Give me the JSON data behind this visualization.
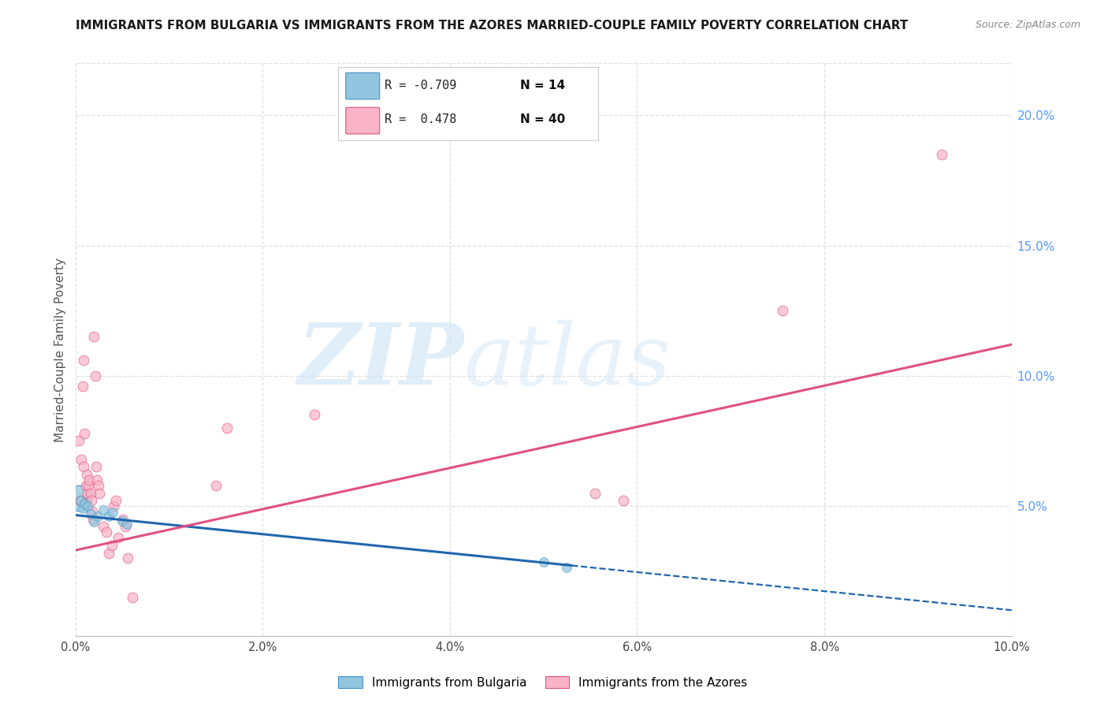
{
  "title": "IMMIGRANTS FROM BULGARIA VS IMMIGRANTS FROM THE AZORES MARRIED-COUPLE FAMILY POVERTY CORRELATION CHART",
  "source": "Source: ZipAtlas.com",
  "ylabel": "Married-Couple Family Poverty",
  "watermark_zip": "ZIP",
  "watermark_atlas": "atlas",
  "legend_blue_R": "R = -0.709",
  "legend_blue_N": "N = 14",
  "legend_pink_R": "R =  0.478",
  "legend_pink_N": "N = 40",
  "legend_label_blue": "Immigrants from Bulgaria",
  "legend_label_pink": "Immigrants from the Azores",
  "xlim": [
    0.0,
    10.0
  ],
  "ylim": [
    0.0,
    22.0
  ],
  "x_ticks": [
    0.0,
    2.0,
    4.0,
    6.0,
    8.0,
    10.0
  ],
  "y_ticks_right": [
    5.0,
    10.0,
    15.0,
    20.0
  ],
  "blue_scatter": [
    [
      0.05,
      5.2
    ],
    [
      0.08,
      4.9
    ],
    [
      0.1,
      5.1
    ],
    [
      0.13,
      5.0
    ],
    [
      0.16,
      4.7
    ],
    [
      0.2,
      4.4
    ],
    [
      0.24,
      4.6
    ],
    [
      0.3,
      4.85
    ],
    [
      0.36,
      4.6
    ],
    [
      0.4,
      4.75
    ],
    [
      0.5,
      4.42
    ],
    [
      0.55,
      4.3
    ],
    [
      5.0,
      2.85
    ],
    [
      5.25,
      2.65
    ]
  ],
  "blue_large_x": 0.04,
  "blue_large_y": 5.3,
  "blue_large_size": 550,
  "pink_scatter": [
    [
      0.04,
      7.5
    ],
    [
      0.05,
      5.2
    ],
    [
      0.065,
      6.8
    ],
    [
      0.075,
      9.6
    ],
    [
      0.085,
      6.5
    ],
    [
      0.09,
      10.6
    ],
    [
      0.1,
      7.8
    ],
    [
      0.11,
      5.8
    ],
    [
      0.12,
      6.2
    ],
    [
      0.13,
      5.5
    ],
    [
      0.14,
      5.8
    ],
    [
      0.15,
      6.0
    ],
    [
      0.16,
      5.5
    ],
    [
      0.17,
      5.2
    ],
    [
      0.18,
      4.8
    ],
    [
      0.19,
      4.5
    ],
    [
      0.2,
      11.5
    ],
    [
      0.21,
      10.0
    ],
    [
      0.22,
      6.5
    ],
    [
      0.23,
      6.0
    ],
    [
      0.245,
      5.8
    ],
    [
      0.26,
      5.5
    ],
    [
      0.3,
      4.2
    ],
    [
      0.33,
      4.0
    ],
    [
      0.36,
      3.2
    ],
    [
      0.39,
      3.5
    ],
    [
      0.41,
      5.0
    ],
    [
      0.43,
      5.2
    ],
    [
      0.46,
      3.8
    ],
    [
      0.51,
      4.5
    ],
    [
      0.53,
      4.2
    ],
    [
      0.56,
      3.0
    ],
    [
      0.61,
      1.5
    ],
    [
      1.5,
      5.8
    ],
    [
      1.62,
      8.0
    ],
    [
      2.55,
      8.5
    ],
    [
      5.55,
      5.5
    ],
    [
      5.85,
      5.2
    ],
    [
      7.55,
      12.5
    ],
    [
      9.25,
      18.5
    ]
  ],
  "blue_line_x0": 0.0,
  "blue_line_y0": 4.65,
  "blue_line_x1": 10.0,
  "blue_line_y1": 1.0,
  "blue_solid_end_x": 5.3,
  "pink_line_x0": 0.0,
  "pink_line_y0": 3.3,
  "pink_line_x1": 10.0,
  "pink_line_y1": 11.2,
  "blue_color": "#92c5de",
  "blue_edge_color": "#4393c3",
  "pink_color": "#f9b4c8",
  "pink_edge_color": "#e05080",
  "blue_line_color": "#2166ac",
  "pink_line_color": "#e05080",
  "grid_color": "#e0e0e0",
  "right_tick_color": "#5599ff",
  "background_color": "#ffffff",
  "title_color": "#1a1a1a",
  "source_color": "#888888"
}
